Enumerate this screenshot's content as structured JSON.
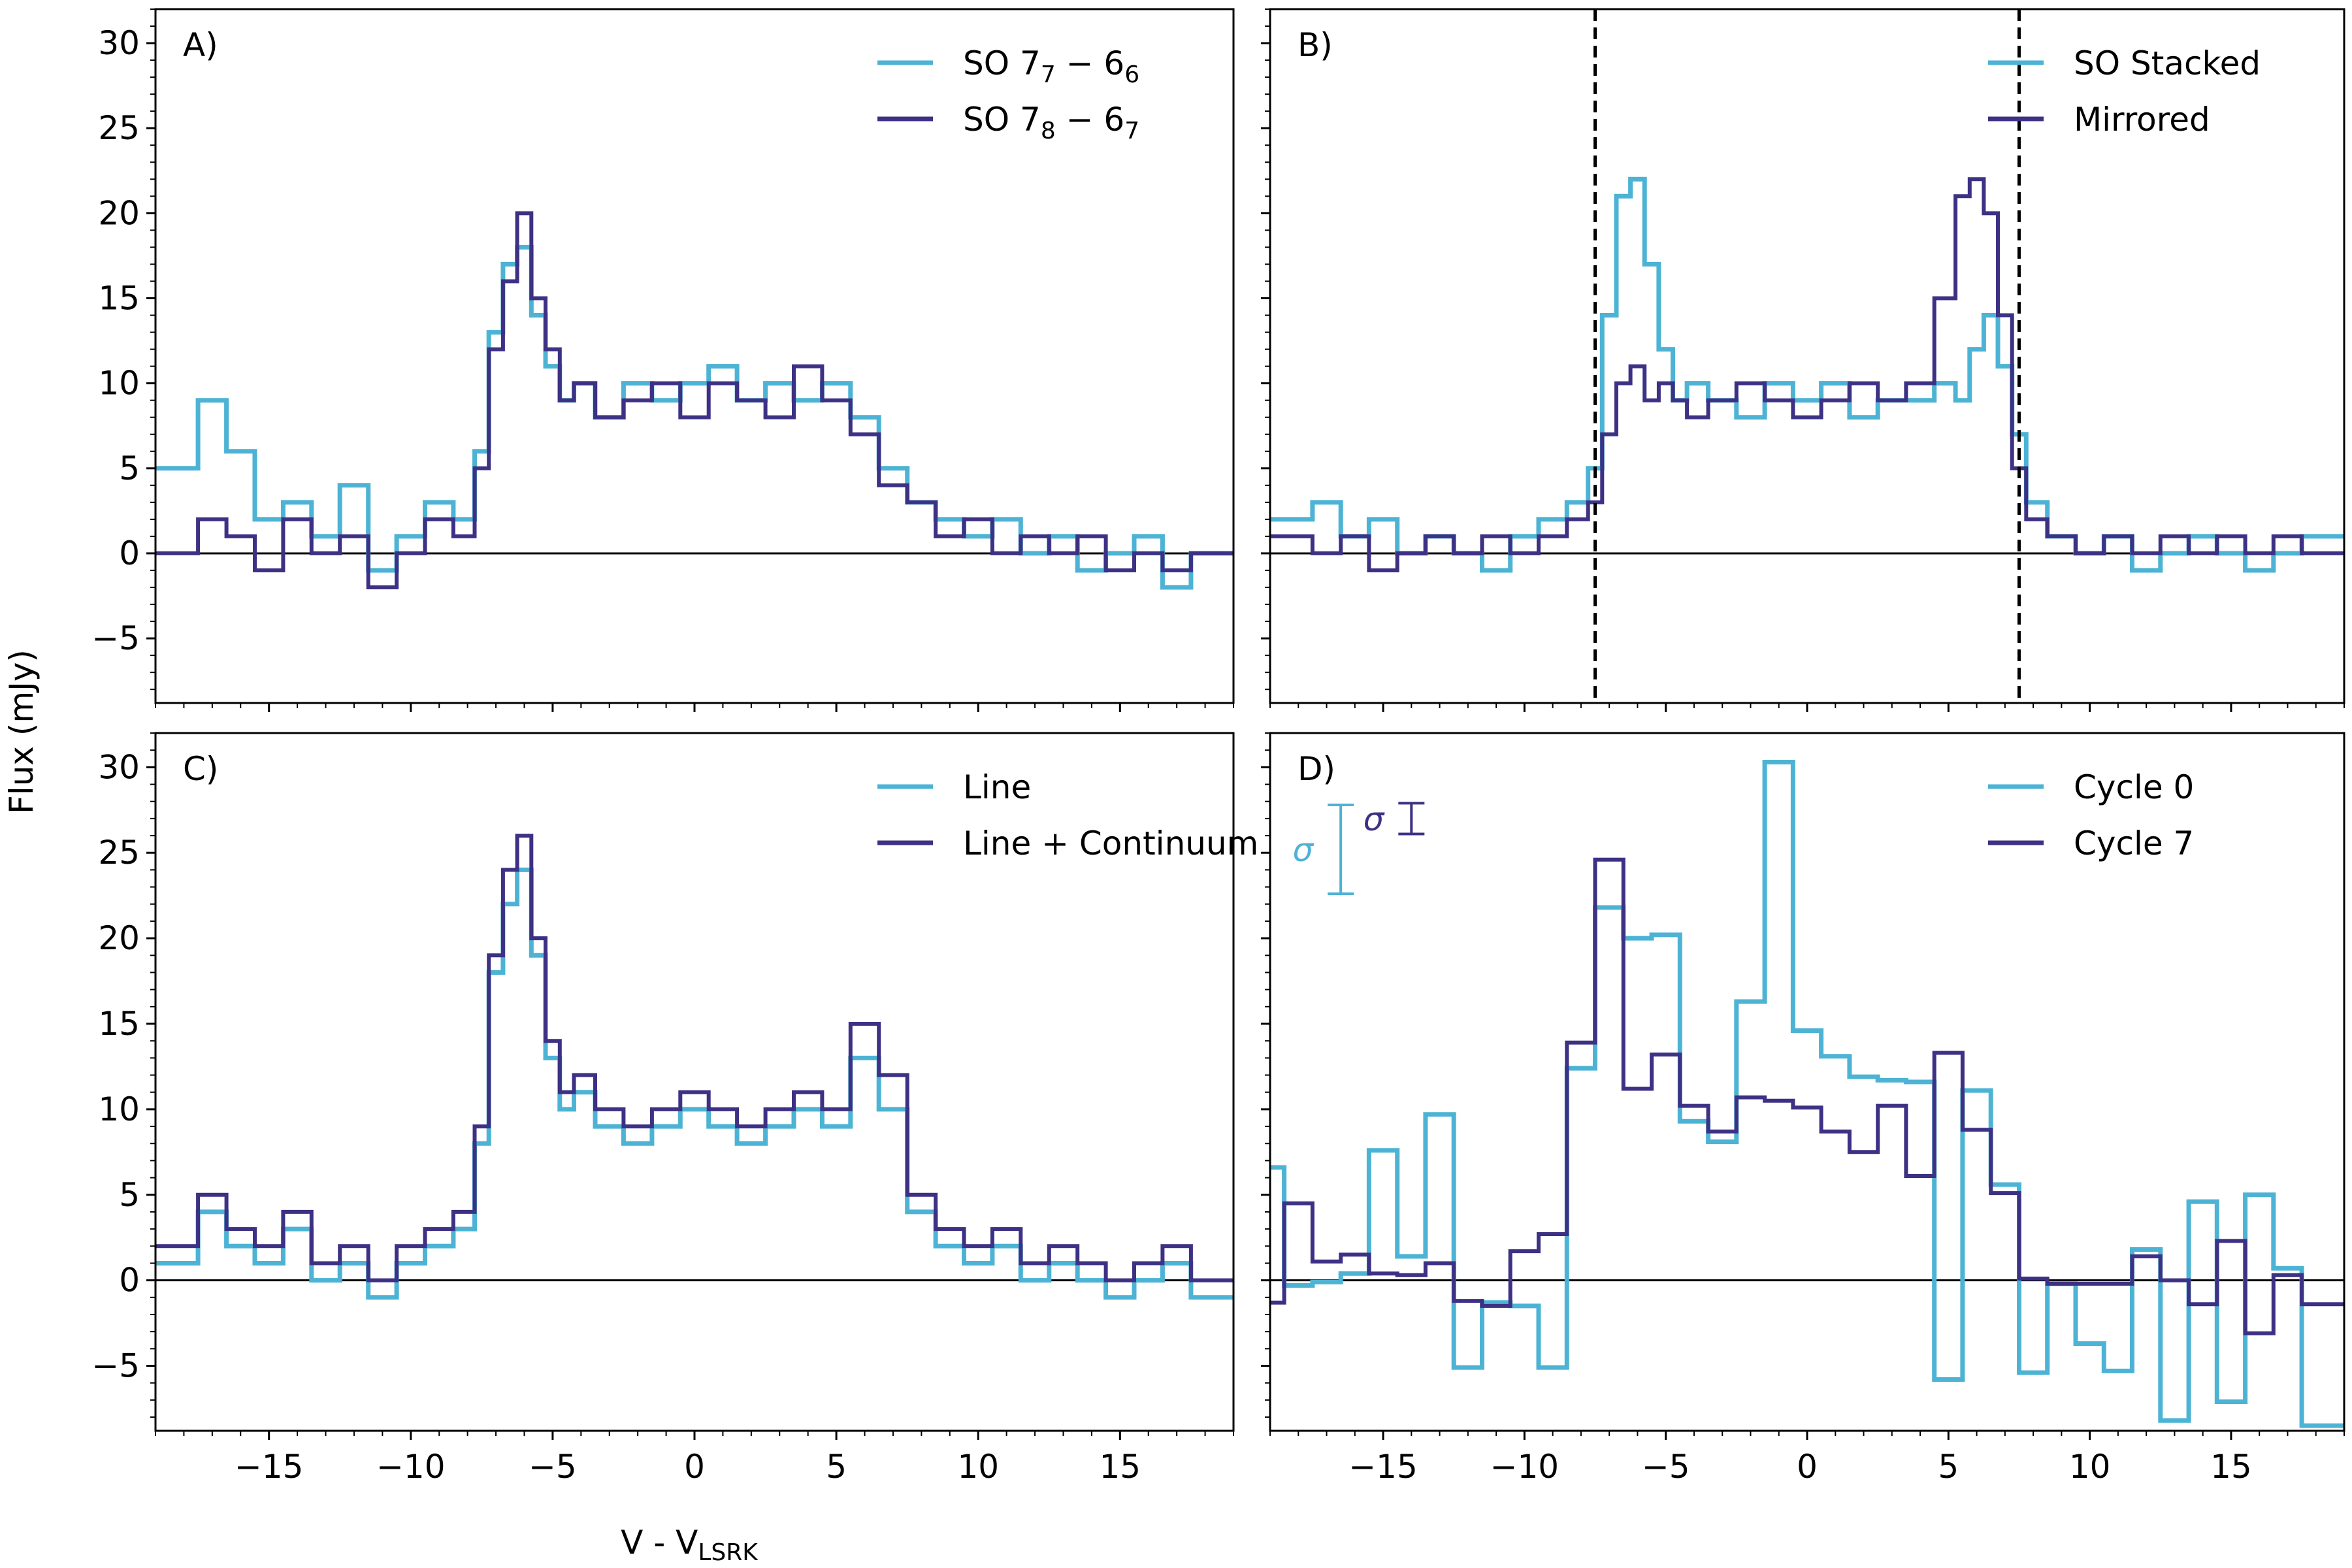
{
  "figure": {
    "xlabel": "V - V",
    "xlabel_sub": "LSRK",
    "ylabel": "Flux (mJy)",
    "colors": {
      "light": "#4db3d4",
      "dark": "#3c3184"
    }
  },
  "chart_data": [
    {
      "panel": "A)",
      "type": "line",
      "step": true,
      "xlim": [
        -19,
        19
      ],
      "ylim": [
        -8.8,
        32
      ],
      "xticks": [
        -15,
        -10,
        -5,
        0,
        5,
        10,
        15
      ],
      "yticks": [
        -5,
        0,
        5,
        10,
        15,
        20,
        25,
        30
      ],
      "legend_position": "top-right",
      "zero_line": true,
      "series": [
        {
          "name": "SO 7",
          "name_sub1": "7",
          "name_mid": " − 6",
          "name_sub2": "6",
          "color": "#4db3d4",
          "x": [
            -18,
            -17,
            -16,
            -15,
            -14,
            -13,
            -12,
            -11,
            -10,
            -9,
            -8,
            -7.5,
            -7,
            -6.5,
            -6,
            -5.5,
            -5,
            -4.5,
            -4,
            -3,
            -2,
            -1,
            0,
            1,
            2,
            3,
            4,
            5,
            6,
            7,
            8,
            9,
            10,
            11,
            12,
            13,
            14,
            15,
            16,
            17,
            18
          ],
          "y": [
            5,
            9,
            6,
            2,
            3,
            1,
            4,
            -1,
            1,
            3,
            2,
            6,
            13,
            17,
            18,
            14,
            11,
            9,
            10,
            8,
            10,
            9,
            10,
            11,
            9,
            10,
            9,
            10,
            8,
            5,
            3,
            2,
            1,
            2,
            0,
            1,
            -1,
            0,
            1,
            -2,
            0
          ]
        },
        {
          "name": "SO 7",
          "name_sub1": "8",
          "name_mid": " − 6",
          "name_sub2": "7",
          "color": "#3c3184",
          "x": [
            -18,
            -17,
            -16,
            -15,
            -14,
            -13,
            -12,
            -11,
            -10,
            -9,
            -8,
            -7.5,
            -7,
            -6.5,
            -6,
            -5.5,
            -5,
            -4.5,
            -4,
            -3,
            -2,
            -1,
            0,
            1,
            2,
            3,
            4,
            5,
            6,
            7,
            8,
            9,
            10,
            11,
            12,
            13,
            14,
            15,
            16,
            17,
            18
          ],
          "y": [
            0,
            2,
            1,
            -1,
            2,
            0,
            1,
            -2,
            0,
            2,
            1,
            5,
            12,
            16,
            20,
            15,
            12,
            9,
            10,
            8,
            9,
            10,
            8,
            10,
            9,
            8,
            11,
            9,
            7,
            4,
            3,
            1,
            2,
            0,
            1,
            0,
            1,
            -1,
            0,
            -1,
            0
          ]
        }
      ]
    },
    {
      "panel": "B)",
      "type": "line",
      "step": true,
      "xlim": [
        -19,
        19
      ],
      "ylim": [
        -8.8,
        32
      ],
      "xticks": [
        -15,
        -10,
        -5,
        0,
        5,
        10,
        15
      ],
      "yticks": [
        -5,
        0,
        5,
        10,
        15,
        20,
        25,
        30
      ],
      "legend_position": "top-right",
      "zero_line": true,
      "vlines": [
        -7.5,
        7.5
      ],
      "series": [
        {
          "name": "SO Stacked",
          "color": "#4db3d4",
          "x": [
            -18,
            -17,
            -16,
            -15,
            -14,
            -13,
            -12,
            -11,
            -10,
            -9,
            -8,
            -7.5,
            -7,
            -6.5,
            -6,
            -5.5,
            -5,
            -4.5,
            -4,
            -3,
            -2,
            -1,
            0,
            1,
            2,
            3,
            4,
            5,
            5.5,
            6,
            6.5,
            7,
            7.5,
            8,
            9,
            10,
            11,
            12,
            13,
            14,
            15,
            16,
            17,
            18
          ],
          "y": [
            2,
            3,
            1,
            2,
            0,
            1,
            0,
            -1,
            1,
            2,
            3,
            5,
            14,
            21,
            22,
            17,
            12,
            9,
            10,
            9,
            8,
            10,
            9,
            10,
            8,
            9,
            9,
            10,
            9,
            12,
            14,
            11,
            7,
            3,
            1,
            0,
            1,
            -1,
            0,
            1,
            0,
            -1,
            0,
            1
          ]
        },
        {
          "name": "Mirrored",
          "color": "#3c3184",
          "x": [
            -18,
            -17,
            -16,
            -15,
            -14,
            -13,
            -12,
            -11,
            -10,
            -9,
            -8,
            -7.5,
            -7,
            -6.5,
            -6,
            -5.5,
            -5,
            -4.5,
            -4,
            -3,
            -2,
            -1,
            0,
            1,
            2,
            3,
            4,
            5,
            5.5,
            6,
            6.5,
            7,
            7.5,
            8,
            9,
            10,
            11,
            12,
            13,
            14,
            15,
            16,
            17,
            18
          ],
          "y": [
            1,
            0,
            1,
            -1,
            0,
            1,
            0,
            1,
            0,
            1,
            2,
            3,
            7,
            10,
            11,
            9,
            10,
            9,
            8,
            9,
            10,
            9,
            8,
            9,
            10,
            9,
            10,
            15,
            21,
            22,
            20,
            14,
            5,
            2,
            1,
            0,
            1,
            0,
            1,
            0,
            1,
            0,
            1,
            0
          ]
        }
      ]
    },
    {
      "panel": "C)",
      "type": "line",
      "step": true,
      "xlim": [
        -19,
        19
      ],
      "ylim": [
        -8.8,
        32
      ],
      "xticks": [
        -15,
        -10,
        -5,
        0,
        5,
        10,
        15
      ],
      "yticks": [
        -5,
        0,
        5,
        10,
        15,
        20,
        25,
        30
      ],
      "legend_position": "top-right",
      "zero_line": true,
      "series": [
        {
          "name": "Line",
          "color": "#4db3d4",
          "x": [
            -18,
            -17,
            -16,
            -15,
            -14,
            -13,
            -12,
            -11,
            -10,
            -9,
            -8,
            -7.5,
            -7,
            -6.5,
            -6,
            -5.5,
            -5,
            -4.5,
            -4,
            -3,
            -2,
            -1,
            0,
            1,
            2,
            3,
            4,
            5,
            6,
            7,
            8,
            9,
            10,
            11,
            12,
            13,
            14,
            15,
            16,
            17,
            18
          ],
          "y": [
            1,
            4,
            2,
            1,
            3,
            0,
            1,
            -1,
            1,
            2,
            3,
            8,
            18,
            22,
            24,
            19,
            13,
            10,
            11,
            9,
            8,
            9,
            10,
            9,
            8,
            9,
            10,
            9,
            13,
            10,
            4,
            2,
            1,
            2,
            0,
            1,
            0,
            -1,
            0,
            1,
            -1
          ]
        },
        {
          "name": "Line + Continuum",
          "color": "#3c3184",
          "x": [
            -18,
            -17,
            -16,
            -15,
            -14,
            -13,
            -12,
            -11,
            -10,
            -9,
            -8,
            -7.5,
            -7,
            -6.5,
            -6,
            -5.5,
            -5,
            -4.5,
            -4,
            -3,
            -2,
            -1,
            0,
            1,
            2,
            3,
            4,
            5,
            6,
            7,
            8,
            9,
            10,
            11,
            12,
            13,
            14,
            15,
            16,
            17,
            18
          ],
          "y": [
            2,
            5,
            3,
            2,
            4,
            1,
            2,
            0,
            2,
            3,
            4,
            9,
            19,
            24,
            26,
            20,
            14,
            11,
            12,
            10,
            9,
            10,
            11,
            10,
            9,
            10,
            11,
            10,
            15,
            12,
            5,
            3,
            2,
            3,
            1,
            2,
            1,
            0,
            1,
            2,
            0
          ]
        }
      ]
    },
    {
      "panel": "D)",
      "type": "line",
      "step": true,
      "xlim": [
        -19,
        19
      ],
      "ylim": [
        -8.8,
        32
      ],
      "xticks": [
        -15,
        -10,
        -5,
        0,
        5,
        10,
        15
      ],
      "yticks": [
        -5,
        0,
        5,
        10,
        15,
        20,
        25,
        30
      ],
      "legend_position": "top-right",
      "zero_line": true,
      "errorbars": [
        {
          "label": "σ",
          "color": "#4db3d4",
          "x": -16.5,
          "y": 25.2,
          "err": 2.6,
          "label_side": "left"
        },
        {
          "label": "σ",
          "color": "#3c3184",
          "x": -14,
          "y": 27.0,
          "err": 0.9,
          "label_side": "left"
        }
      ],
      "series": [
        {
          "name": "Cycle 0",
          "color": "#4db3d4",
          "x": [
            -19,
            -18,
            -17,
            -16,
            -15,
            -14,
            -13,
            -12,
            -11,
            -10,
            -9,
            -8,
            -7,
            -6,
            -5,
            -4,
            -3,
            -2,
            -1,
            0,
            1,
            2,
            3,
            4,
            5,
            6,
            7,
            8,
            9,
            10,
            11,
            12,
            13,
            14,
            15,
            16,
            17,
            18
          ],
          "y": [
            6.6,
            -0.3,
            -0.1,
            0.4,
            7.6,
            1.4,
            9.7,
            -5.1,
            -1.3,
            -1.5,
            -5.1,
            12.4,
            21.8,
            20.0,
            20.2,
            9.3,
            8.1,
            16.3,
            30.3,
            14.6,
            13.1,
            11.9,
            11.7,
            11.6,
            -5.8,
            11.1,
            5.6,
            -5.4,
            -0.2,
            -3.7,
            -5.3,
            1.8,
            -8.2,
            4.6,
            -7.1,
            5.0,
            0.7,
            -8.5
          ]
        },
        {
          "name": "Cycle 7",
          "color": "#3c3184",
          "x": [
            -19,
            -18,
            -17,
            -16,
            -15,
            -14,
            -13,
            -12,
            -11,
            -10,
            -9,
            -8,
            -7,
            -6,
            -5,
            -4,
            -3,
            -2,
            -1,
            0,
            1,
            2,
            3,
            4,
            5,
            6,
            7,
            8,
            9,
            10,
            11,
            12,
            13,
            14,
            15,
            16,
            17,
            18
          ],
          "y": [
            -1.3,
            4.5,
            1.1,
            1.5,
            0.4,
            0.3,
            1.0,
            -1.2,
            -1.5,
            1.7,
            2.7,
            13.9,
            24.6,
            11.2,
            13.2,
            10.2,
            8.7,
            10.7,
            10.5,
            10.1,
            8.7,
            7.5,
            10.2,
            6.1,
            13.3,
            8.8,
            5.1,
            0.1,
            -0.2,
            -0.2,
            -0.2,
            1.4,
            0.0,
            -1.4,
            2.3,
            -3.1,
            0.3,
            -1.4
          ]
        }
      ]
    }
  ]
}
